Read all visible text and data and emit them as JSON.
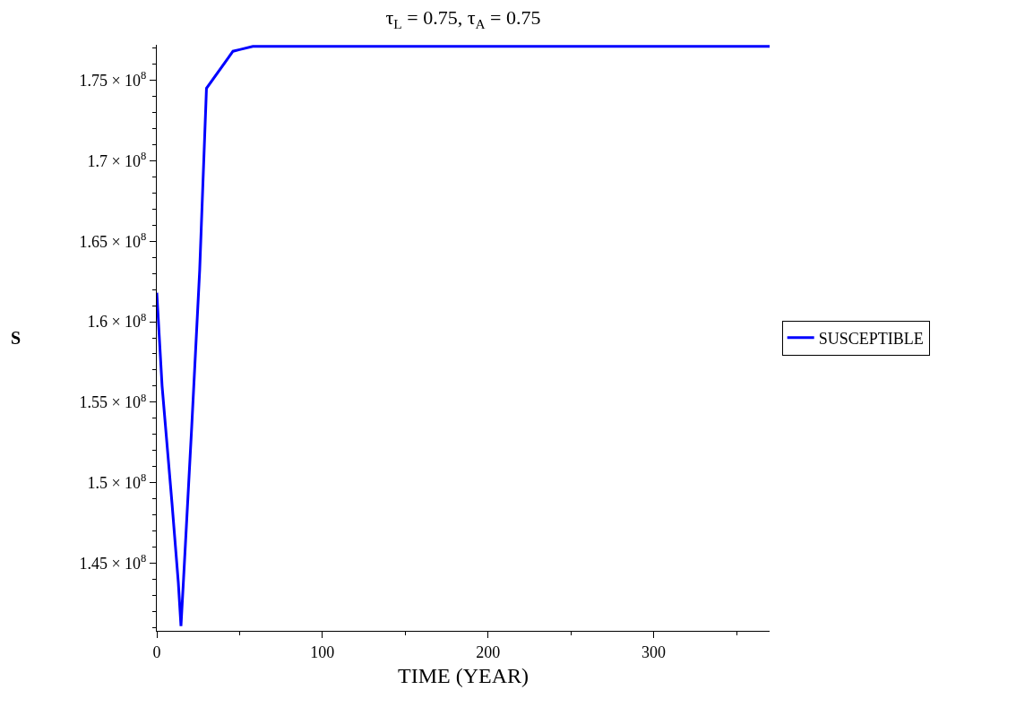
{
  "chart_data": {
    "type": "line",
    "title": "τ$_{L}$ = 0.75, τ$_{A}$ = 0.75",
    "xlabel": "TIME (YEAR)",
    "ylabel": "S",
    "x": [
      0,
      3.2,
      9.2,
      13,
      14.6,
      16.2,
      21.1,
      25.9,
      30,
      46,
      50,
      58,
      370
    ],
    "series": [
      {
        "name": "SUSCEPTIBLE",
        "color": "#0000ff",
        "values": [
          161800000,
          156000000,
          148700000,
          143800000,
          141100000,
          144100000,
          153500000,
          163200000,
          174500000,
          176800000,
          176900000,
          177100000,
          177100000
        ]
      }
    ],
    "xlim": [
      0,
      370
    ],
    "ylim": [
      140800000,
      177200000
    ],
    "xticks": [
      0,
      100,
      200,
      300
    ],
    "yticks": [
      {
        "value": 145000000,
        "label": "1.45 × 10$^{8}$"
      },
      {
        "value": 150000000,
        "label": "1.5 × 10$^{8}$"
      },
      {
        "value": 155000000,
        "label": "1.55 × 10$^{8}$"
      },
      {
        "value": 160000000,
        "label": "1.6 × 10$^{8}$"
      },
      {
        "value": 165000000,
        "label": "1.65 × 10$^{8}$"
      },
      {
        "value": 170000000,
        "label": "1.7 × 10$^{8}$"
      },
      {
        "value": 175000000,
        "label": "1.75 × 10$^{8}$"
      }
    ],
    "grid": false,
    "legend": "right",
    "marker": "none",
    "line_style": "solid"
  }
}
